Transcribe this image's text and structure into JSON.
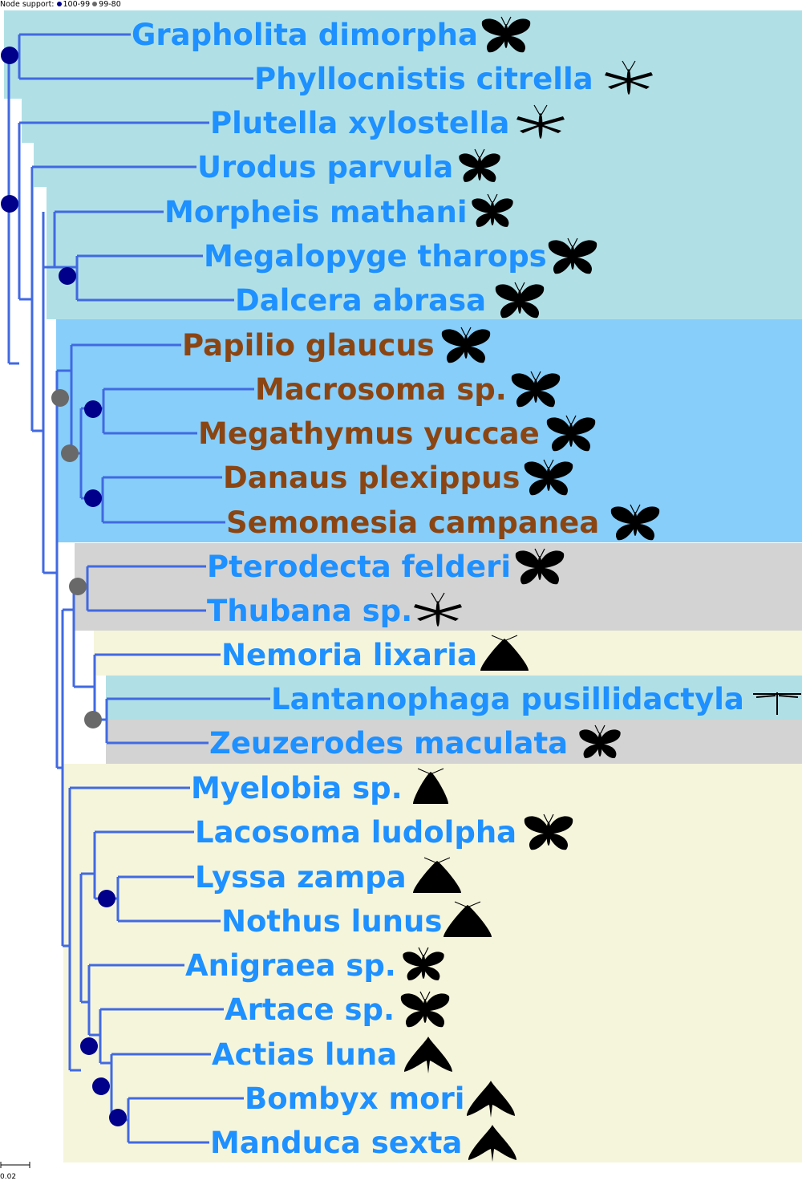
{
  "legend": {
    "prefix": "Node support:",
    "high": {
      "label": "100-99",
      "color": "#00008b"
    },
    "mid": {
      "label": "99-80",
      "color": "#696969"
    }
  },
  "scale_bar": {
    "label": "0.02"
  },
  "colors": {
    "branch": "#4169e1",
    "label_blue": "#1e90ff",
    "label_brown": "#8b4513",
    "clade_lightblue": "#b0e0e6",
    "clade_skyblue": "#87cefa",
    "clade_gray": "#d3d3d3",
    "clade_beige": "#f5f5dc",
    "silhouette": "#000000"
  },
  "taxa": [
    {
      "name": "Grapholita dimorpha",
      "color": "blue",
      "icon": "butterfly-silhouette-icon"
    },
    {
      "name": "Phyllocnistis citrella",
      "color": "blue",
      "icon": "slender-moth-silhouette-icon"
    },
    {
      "name": "Plutella xylostella",
      "color": "blue",
      "icon": "slender-moth-silhouette-icon"
    },
    {
      "name": "Urodus parvula",
      "color": "blue",
      "icon": "moth-silhouette-icon"
    },
    {
      "name": "Morpheis mathani",
      "color": "blue",
      "icon": "moth-silhouette-icon"
    },
    {
      "name": "Megalopyge tharops",
      "color": "blue",
      "icon": "butterfly-silhouette-icon"
    },
    {
      "name": "Dalcera abrasa",
      "color": "blue",
      "icon": "butterfly-silhouette-icon"
    },
    {
      "name": "Papilio glaucus",
      "color": "brown",
      "icon": "butterfly-silhouette-icon"
    },
    {
      "name": "Macrosoma sp.",
      "color": "brown",
      "icon": "butterfly-silhouette-icon"
    },
    {
      "name": "Megathymus yuccae",
      "color": "brown",
      "icon": "butterfly-silhouette-icon"
    },
    {
      "name": "Danaus plexippus",
      "color": "brown",
      "icon": "butterfly-silhouette-icon"
    },
    {
      "name": "Semomesia campanea",
      "color": "brown",
      "icon": "butterfly-silhouette-icon"
    },
    {
      "name": "Pterodecta felderi",
      "color": "blue",
      "icon": "butterfly-silhouette-icon"
    },
    {
      "name": "Thubana sp.",
      "color": "blue",
      "icon": "slender-moth-silhouette-icon"
    },
    {
      "name": "Nemoria lixaria",
      "color": "blue",
      "icon": "triangle-moth-silhouette-icon"
    },
    {
      "name": "Lantanophaga pusillidactyla",
      "color": "blue",
      "icon": "plume-moth-silhouette-icon"
    },
    {
      "name": "Zeuzerodes maculata",
      "color": "blue",
      "icon": "moth-silhouette-icon"
    },
    {
      "name": "Myelobia sp.",
      "color": "blue",
      "icon": "resting-moth-silhouette-icon"
    },
    {
      "name": "Lacosoma ludolpha",
      "color": "blue",
      "icon": "butterfly-silhouette-icon"
    },
    {
      "name": "Lyssa zampa",
      "color": "blue",
      "icon": "triangle-moth-silhouette-icon"
    },
    {
      "name": "Nothus lunus",
      "color": "blue",
      "icon": "triangle-moth-silhouette-icon"
    },
    {
      "name": "Anigraea sp.",
      "color": "blue",
      "icon": "moth-silhouette-icon"
    },
    {
      "name": "Artace sp.",
      "color": "blue",
      "icon": "butterfly-silhouette-icon"
    },
    {
      "name": "Actias luna",
      "color": "blue",
      "icon": "hawkmoth-silhouette-icon"
    },
    {
      "name": "Bombyx mori",
      "color": "blue",
      "icon": "hawkmoth-silhouette-icon"
    },
    {
      "name": "Manduca sexta",
      "color": "blue",
      "icon": "hawkmoth-silhouette-icon"
    }
  ]
}
